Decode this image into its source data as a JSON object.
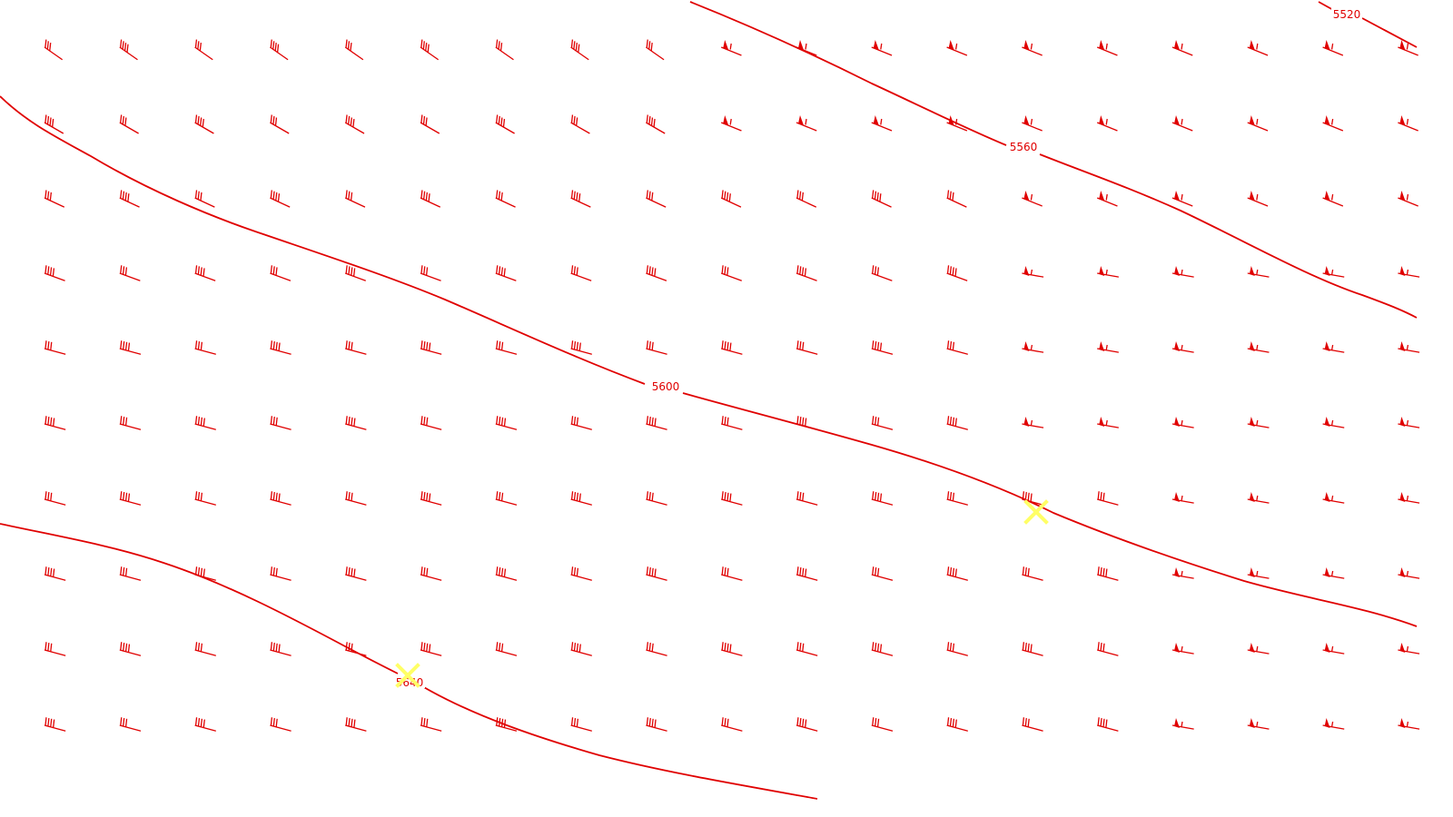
{
  "map": {
    "colors": {
      "background": "#ffffff",
      "contour": "#e00000",
      "wind_barb": "#e00000",
      "marker": "#ffff66"
    },
    "contours": [
      {
        "label": "5520"
      },
      {
        "label": "5560"
      },
      {
        "label": "5600"
      },
      {
        "label": "5640"
      }
    ],
    "markers": [
      {
        "icon": "x-marker-icon"
      },
      {
        "icon": "x-marker-icon"
      }
    ],
    "wind_barbs": {
      "rows": 10,
      "cols": 19,
      "direction_note_icon": "wind-barb-icon"
    }
  }
}
